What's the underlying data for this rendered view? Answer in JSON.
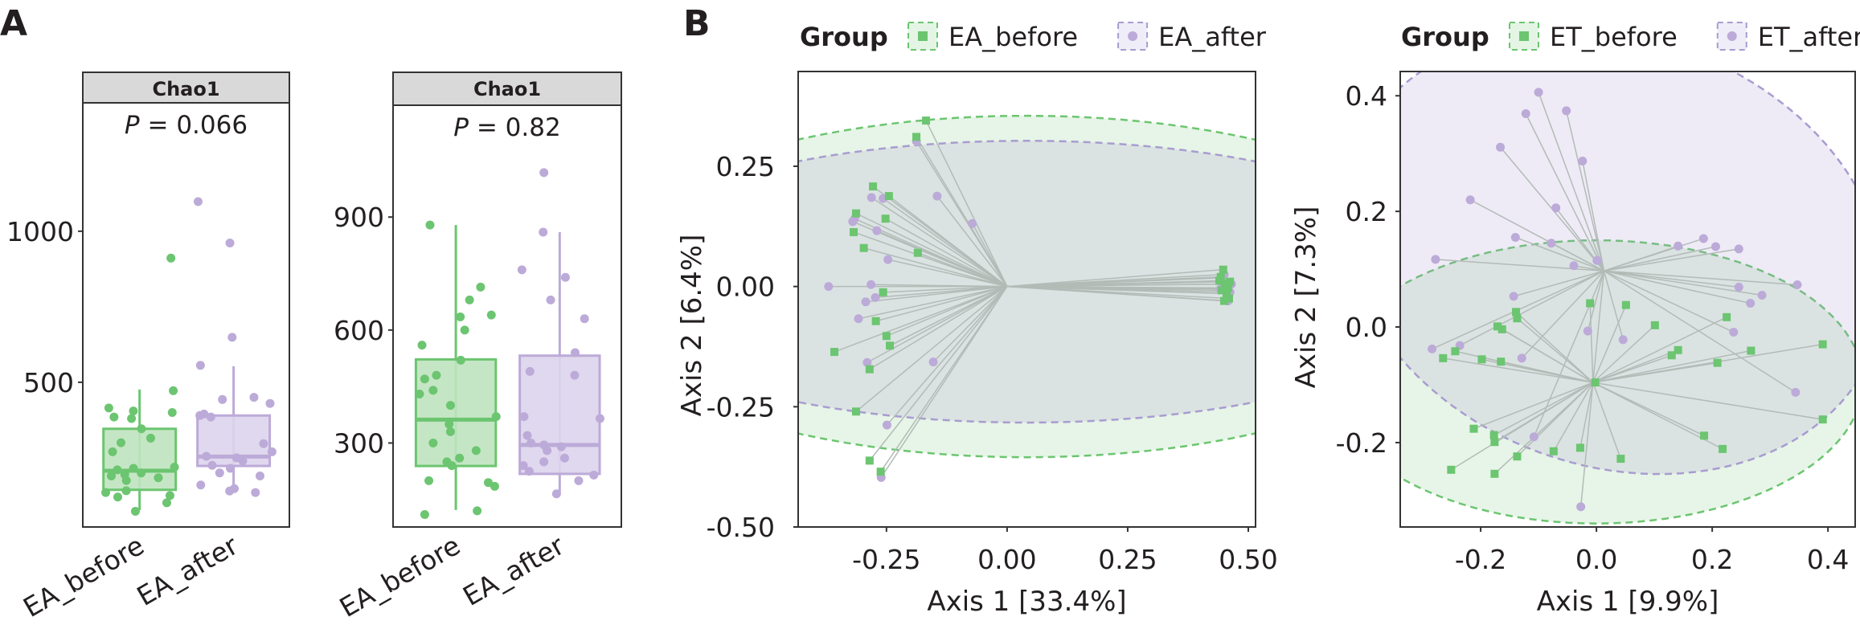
{
  "panel_labels": {
    "a": "A",
    "b": "B"
  },
  "colors": {
    "before": "#6cc570",
    "after": "#bcaad8",
    "before_fill": "#bfe3bf",
    "after_fill": "#ddd4ec",
    "line": "#b3bbb7"
  },
  "chart_data": [
    {
      "type": "box",
      "strip_title": "Chao1",
      "p_label": "P",
      "p_value": "= 0.066",
      "categories": [
        "EA_before",
        "EA_after"
      ],
      "ylim": [
        21,
        1425
      ],
      "yticks": [
        500,
        1000
      ],
      "ytick_labels": [
        "500",
        "1000"
      ],
      "boxes": [
        {
          "name": "EA_before",
          "min": 77,
          "q1": 144,
          "median": 207,
          "q3": 346,
          "max": 476
        },
        {
          "name": "EA_after",
          "min": 148,
          "q1": 223,
          "median": 254,
          "q3": 390,
          "max": 553
        }
      ],
      "points": [
        [
          911,
          472,
          415,
          405,
          400,
          385,
          380,
          346,
          315,
          300,
          270,
          219,
          215,
          210,
          200,
          195,
          190,
          184,
          175,
          141,
          135,
          125,
          120,
          101,
          73
        ],
        [
          1098,
          961,
          649,
          556,
          450,
          443,
          430,
          395,
          390,
          385,
          297,
          270,
          255,
          250,
          240,
          225,
          215,
          200,
          190,
          160,
          148,
          140,
          135
        ]
      ]
    },
    {
      "type": "box",
      "strip_title": "Chao1",
      "p_label": "P",
      "p_value": "= 0.82",
      "categories": [
        "EA_before",
        "EA_after"
      ],
      "ylim": [
        77,
        1197
      ],
      "yticks": [
        300,
        600,
        900
      ],
      "ytick_labels": [
        "300",
        "600",
        "900"
      ],
      "boxes": [
        {
          "name": "EA_before",
          "min": 122,
          "q1": 239,
          "median": 362,
          "q3": 522,
          "max": 879
        },
        {
          "name": "EA_after",
          "min": 165,
          "q1": 218,
          "median": 295,
          "q3": 532,
          "max": 860
        }
      ],
      "points": [
        [
          879,
          714,
          680,
          640,
          635,
          600,
          560,
          520,
          480,
          470,
          440,
          430,
          400,
          370,
          350,
          330,
          300,
          280,
          260,
          250,
          240,
          200,
          195,
          185,
          120,
          110
        ],
        [
          1018,
          860,
          760,
          740,
          680,
          630,
          540,
          490,
          480,
          370,
          365,
          320,
          300,
          295,
          290,
          280,
          260,
          250,
          240,
          225,
          215,
          200,
          165
        ]
      ]
    },
    {
      "type": "scatter",
      "legend_title": "Group",
      "legend_position": "top",
      "series_names": [
        "EA_before",
        "EA_after"
      ],
      "xlabel": "Axis 1 [33.4%]",
      "ylabel": "Axis 2 [6.4%]",
      "xlim": [
        -0.433,
        0.515
      ],
      "ylim": [
        -0.5,
        0.447
      ],
      "xticks": [
        -0.25,
        0,
        0.25,
        0.5
      ],
      "xtick_labels": [
        "-0.25",
        "0.00",
        "0.25",
        "0.50"
      ],
      "yticks": [
        -0.5,
        -0.25,
        0,
        0.25
      ],
      "ytick_labels": [
        "-0.50",
        "-0.25",
        "0.00",
        "0.25"
      ],
      "centroids": [
        [
          0.0,
          0.0
        ],
        [
          0.0,
          0.0
        ]
      ],
      "ellipses": [
        {
          "cx": 0.04,
          "cy": 0.0,
          "rx": 0.93,
          "ry": 0.355,
          "angle": 0
        },
        {
          "cx": 0.04,
          "cy": 0.01,
          "rx": 0.91,
          "ry": 0.293,
          "angle": 0
        }
      ],
      "series": [
        {
          "name": "EA_before",
          "marker": "square",
          "points": [
            [
              -0.278,
              0.208
            ],
            [
              -0.245,
              0.188
            ],
            [
              -0.313,
              0.152
            ],
            [
              -0.252,
              0.141
            ],
            [
              -0.318,
              0.113
            ],
            [
              -0.297,
              0.08
            ],
            [
              -0.257,
              -0.012
            ],
            [
              -0.272,
              -0.072
            ],
            [
              -0.25,
              -0.103
            ],
            [
              -0.243,
              -0.123
            ],
            [
              -0.358,
              -0.136
            ],
            [
              -0.285,
              -0.172
            ],
            [
              -0.313,
              -0.26
            ],
            [
              -0.285,
              -0.362
            ],
            [
              -0.262,
              -0.385
            ],
            [
              -0.168,
              0.345
            ],
            [
              -0.188,
              0.311
            ],
            [
              -0.185,
              0.07
            ],
            [
              0.448,
              0.035
            ],
            [
              0.44,
              0.012
            ],
            [
              0.452,
              0.005
            ],
            [
              0.458,
              -0.003
            ],
            [
              0.445,
              -0.008
            ],
            [
              0.455,
              -0.015
            ],
            [
              0.46,
              -0.025
            ],
            [
              0.45,
              -0.03
            ],
            [
              0.443,
              0.02
            ],
            [
              0.462,
              0.01
            ]
          ]
        },
        {
          "name": "EA_after",
          "marker": "circle",
          "points": [
            [
              -0.281,
              0.185
            ],
            [
              -0.257,
              0.183
            ],
            [
              -0.32,
              0.135
            ],
            [
              -0.316,
              0.141
            ],
            [
              -0.27,
              0.116
            ],
            [
              -0.247,
              0.056
            ],
            [
              -0.37,
              0.0
            ],
            [
              -0.282,
              0.004
            ],
            [
              -0.293,
              -0.032
            ],
            [
              -0.273,
              -0.023
            ],
            [
              -0.308,
              -0.067
            ],
            [
              -0.29,
              -0.158
            ],
            [
              -0.249,
              -0.288
            ],
            [
              -0.261,
              -0.397
            ],
            [
              -0.145,
              0.188
            ],
            [
              -0.072,
              0.131
            ],
            [
              -0.153,
              -0.157
            ],
            [
              -0.188,
              0.302
            ],
            [
              0.447,
              0.018
            ],
            [
              0.465,
              0.005
            ],
            [
              0.458,
              -0.03
            ],
            [
              0.442,
              -0.005
            ],
            [
              0.462,
              -0.012
            ],
            [
              0.45,
              0.025
            ]
          ]
        }
      ]
    },
    {
      "type": "scatter",
      "legend_title": "Group",
      "legend_position": "top",
      "series_names": [
        "ET_before",
        "ET_after"
      ],
      "xlabel": "Axis 1 [9.9%]",
      "ylabel": "Axis 2 [7.3%]",
      "xlim": [
        -0.339,
        0.447
      ],
      "ylim": [
        -0.346,
        0.442
      ],
      "xticks": [
        -0.2,
        0,
        0.2,
        0.4
      ],
      "xtick_labels": [
        "-0.2",
        "0.0",
        "0.2",
        "0.4"
      ],
      "yticks": [
        -0.2,
        0,
        0.2,
        0.4
      ],
      "ytick_labels": [
        "-0.2",
        "0.0",
        "0.2",
        "0.4"
      ],
      "centroids": [
        [
          -0.006,
          -0.096
        ],
        [
          0.013,
          0.097
        ]
      ],
      "ellipses": [
        {
          "cx": 0.0,
          "cy": -0.095,
          "rx": 0.46,
          "ry": 0.245,
          "angle": 0
        },
        {
          "cx": 0.03,
          "cy": 0.13,
          "rx": 0.48,
          "ry": 0.37,
          "angle": -20
        }
      ],
      "series": [
        {
          "name": "ET_before",
          "marker": "square",
          "points": [
            [
              -0.011,
              0.041
            ],
            [
              0.051,
              0.038
            ],
            [
              -0.139,
              0.026
            ],
            [
              -0.137,
              0.015
            ],
            [
              -0.171,
              0.001
            ],
            [
              -0.163,
              -0.004
            ],
            [
              0.101,
              0.003
            ],
            [
              0.225,
              0.017
            ],
            [
              -0.265,
              -0.054
            ],
            [
              -0.244,
              -0.042
            ],
            [
              -0.198,
              -0.056
            ],
            [
              -0.165,
              -0.06
            ],
            [
              0.13,
              -0.049
            ],
            [
              0.141,
              -0.04
            ],
            [
              0.267,
              -0.041
            ],
            [
              0.209,
              -0.062
            ],
            [
              0.391,
              -0.03
            ],
            [
              -0.002,
              -0.096
            ],
            [
              -0.212,
              -0.176
            ],
            [
              -0.177,
              -0.187
            ],
            [
              -0.176,
              -0.199
            ],
            [
              -0.137,
              -0.224
            ],
            [
              -0.251,
              -0.247
            ],
            [
              -0.176,
              -0.254
            ],
            [
              -0.074,
              -0.215
            ],
            [
              -0.028,
              -0.209
            ],
            [
              0.042,
              -0.228
            ],
            [
              0.186,
              -0.188
            ],
            [
              0.218,
              -0.211
            ],
            [
              0.391,
              -0.16
            ]
          ]
        },
        {
          "name": "ET_after",
          "marker": "circle",
          "points": [
            [
              -0.1,
              0.406
            ],
            [
              -0.122,
              0.369
            ],
            [
              -0.052,
              0.374
            ],
            [
              -0.166,
              0.311
            ],
            [
              -0.024,
              0.287
            ],
            [
              -0.218,
              0.22
            ],
            [
              -0.07,
              0.206
            ],
            [
              -0.14,
              0.155
            ],
            [
              -0.078,
              0.145
            ],
            [
              -0.278,
              0.117
            ],
            [
              -0.039,
              0.106
            ],
            [
              0.001,
              0.115
            ],
            [
              0.141,
              0.14
            ],
            [
              0.185,
              0.153
            ],
            [
              0.206,
              0.139
            ],
            [
              0.246,
              0.135
            ],
            [
              0.246,
              0.069
            ],
            [
              0.286,
              0.055
            ],
            [
              0.266,
              0.041
            ],
            [
              0.347,
              0.073
            ],
            [
              -0.143,
              0.053
            ],
            [
              -0.015,
              -0.007
            ],
            [
              0.046,
              -0.022
            ],
            [
              0.237,
              -0.009
            ],
            [
              -0.284,
              -0.038
            ],
            [
              -0.236,
              -0.032
            ],
            [
              -0.129,
              -0.054
            ],
            [
              0.344,
              -0.113
            ],
            [
              -0.108,
              -0.19
            ],
            [
              -0.027,
              -0.311
            ]
          ]
        }
      ]
    }
  ]
}
